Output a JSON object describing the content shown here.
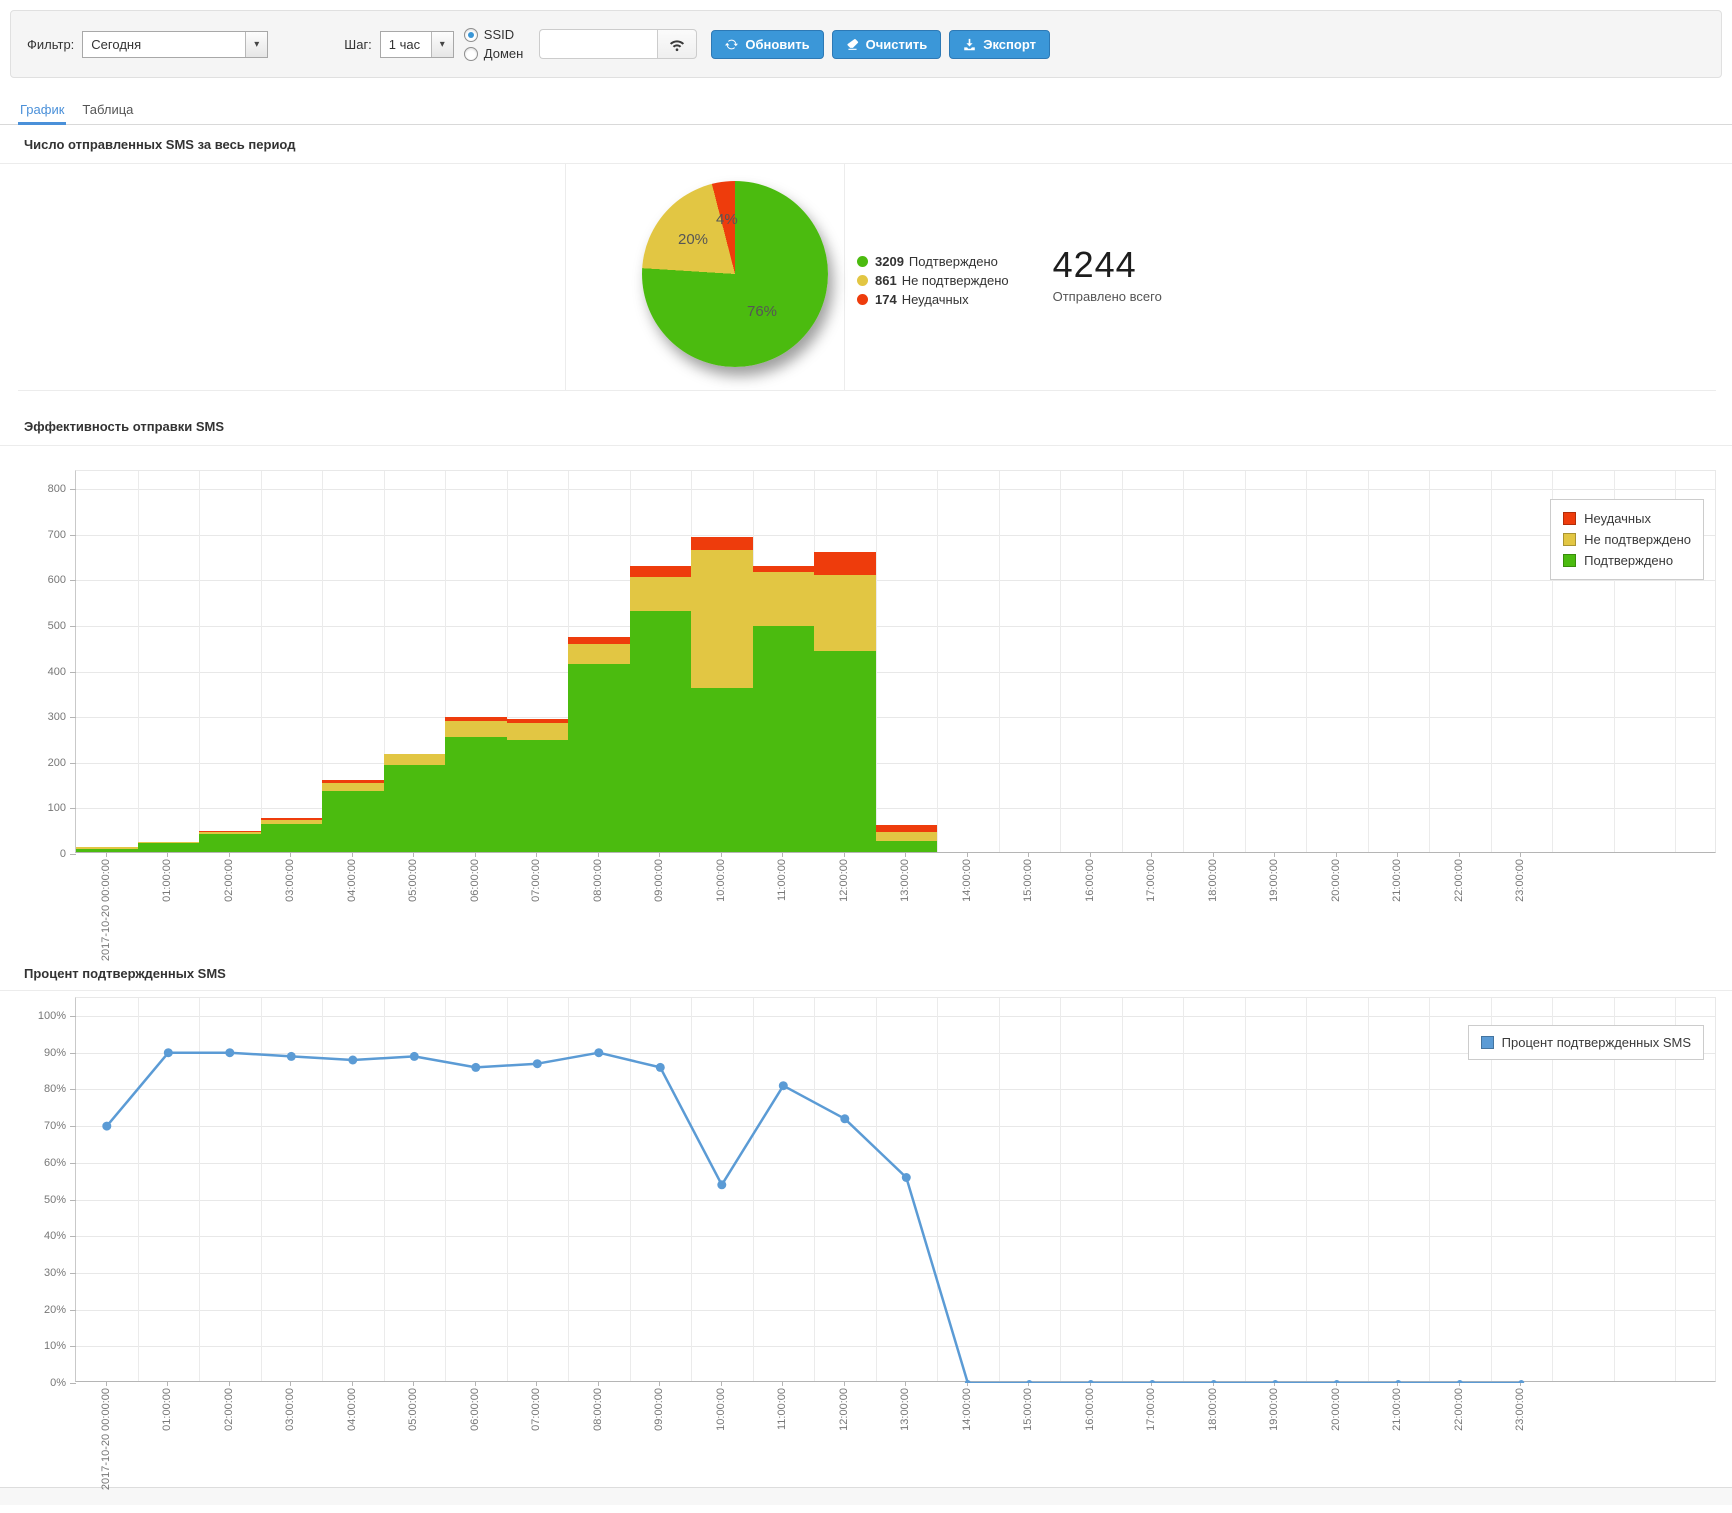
{
  "toolbar": {
    "filter_label": "Фильтр:",
    "filter_value": "Сегодня",
    "step_label": "Шаг:",
    "step_value": "1 час",
    "radio_ssid": "SSID",
    "radio_domain": "Домен",
    "search_value": "",
    "refresh_label": "Обновить",
    "clear_label": "Очистить",
    "export_label": "Экспорт"
  },
  "tabs": {
    "grafik": "График",
    "tablica": "Таблица"
  },
  "sections": {
    "pie_title": "Число отправленных SMS за весь период",
    "bar_title": "Эффективность отправки SMS",
    "line_title": "Процент подтвержденных SMS"
  },
  "colors": {
    "confirmed_green": "#4bbb0f",
    "unconfirmed_yellow": "#e2c643",
    "failed_red": "#ee3c0c",
    "line_blue": "#5b9bd5",
    "button_blue": "#3b97d8",
    "tab_active_blue": "#4a90d9"
  },
  "chart_data": [
    {
      "type": "pie",
      "title": "Число отправленных SMS за весь период",
      "slices": [
        {
          "label": "Подтверждено",
          "value": "3209",
          "percent": 76,
          "percent_label": "76%",
          "color": "#4bbb0f"
        },
        {
          "label": "Не подтверждено",
          "value": "861",
          "percent": 20,
          "percent_label": "20%",
          "color": "#e2c643"
        },
        {
          "label": "Неудачных",
          "value": "174",
          "percent": 4,
          "percent_label": "4%",
          "color": "#ee3c0c"
        }
      ],
      "total": "4244",
      "total_label": "Отправлено всего"
    },
    {
      "type": "bar",
      "stacked": true,
      "title": "Эффективность отправки SMS",
      "categories": [
        "2017-10-20 00:00:00",
        "01:00:00",
        "02:00:00",
        "03:00:00",
        "04:00:00",
        "05:00:00",
        "06:00:00",
        "07:00:00",
        "08:00:00",
        "09:00:00",
        "10:00:00",
        "11:00:00",
        "12:00:00",
        "13:00:00",
        "14:00:00",
        "15:00:00",
        "16:00:00",
        "17:00:00",
        "18:00:00",
        "19:00:00",
        "20:00:00",
        "21:00:00",
        "22:00:00",
        "23:00:00"
      ],
      "ylim": [
        0,
        800
      ],
      "ytick_step": 100,
      "grid": true,
      "legend_position": "top-right",
      "series": [
        {
          "name": "Подтверждено",
          "color": "#4bbb0f",
          "values": [
            7,
            19,
            40,
            62,
            133,
            190,
            253,
            245,
            412,
            528,
            360,
            495,
            440,
            25,
            0,
            0,
            0,
            0,
            0,
            0,
            0,
            0,
            0,
            0
          ]
        },
        {
          "name": "Не подтверждено",
          "color": "#e2c643",
          "values": [
            3,
            2,
            5,
            9,
            18,
            24,
            35,
            38,
            45,
            75,
            302,
            118,
            167,
            20,
            0,
            0,
            0,
            0,
            0,
            0,
            0,
            0,
            0,
            0
          ]
        },
        {
          "name": "Неудачных",
          "color": "#ee3c0c",
          "values": [
            0,
            0,
            1,
            3,
            6,
            0,
            8,
            8,
            15,
            25,
            28,
            15,
            50,
            15,
            0,
            0,
            0,
            0,
            0,
            0,
            0,
            0,
            0,
            0
          ]
        }
      ],
      "legend": [
        {
          "label": "Неудачных",
          "color": "#ee3c0c"
        },
        {
          "label": "Не подтверждено",
          "color": "#e2c643"
        },
        {
          "label": "Подтверждено",
          "color": "#4bbb0f"
        }
      ]
    },
    {
      "type": "line",
      "title": "Процент подтвержденных SMS",
      "categories": [
        "2017-10-20 00:00:00",
        "01:00:00",
        "02:00:00",
        "03:00:00",
        "04:00:00",
        "05:00:00",
        "06:00:00",
        "07:00:00",
        "08:00:00",
        "09:00:00",
        "10:00:00",
        "11:00:00",
        "12:00:00",
        "13:00:00",
        "14:00:00",
        "15:00:00",
        "16:00:00",
        "17:00:00",
        "18:00:00",
        "19:00:00",
        "20:00:00",
        "21:00:00",
        "22:00:00",
        "23:00:00"
      ],
      "ylim": [
        0,
        100
      ],
      "ytick_step": 10,
      "ytick_suffix": "%",
      "grid": true,
      "color": "#5b9bd5",
      "values": [
        70,
        90,
        90,
        89,
        88,
        89,
        86,
        87,
        90,
        86,
        54,
        81,
        72,
        56,
        0,
        0,
        0,
        0,
        0,
        0,
        0,
        0,
        0,
        0
      ],
      "legend_label": "Процент подтвержденных SMS",
      "legend_position": "top-right"
    }
  ]
}
